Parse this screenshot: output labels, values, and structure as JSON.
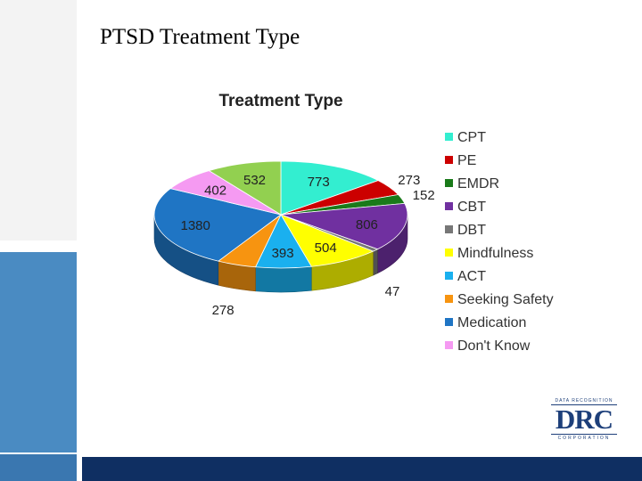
{
  "slide": {
    "title": "PTSD Treatment Type"
  },
  "logo": {
    "top_text": "DATA RECOGNITION",
    "main_text": "DRC",
    "bottom_text": "CORPORATION"
  },
  "chart_data": {
    "type": "pie",
    "title": "Treatment Type",
    "legend_position": "right",
    "categories": [
      "CPT",
      "PE",
      "EMDR",
      "CBT",
      "DBT",
      "Mindfulness",
      "ACT",
      "Seeking Safety",
      "Medication",
      "Don't Know"
    ],
    "values": [
      773,
      273,
      152,
      806,
      47,
      504,
      393,
      278,
      1380,
      402
    ],
    "data_labels": [
      "773",
      "273",
      "152",
      "806",
      "47",
      "504",
      "393",
      "278",
      "1380",
      "402"
    ],
    "colors": [
      "#33eed0",
      "#cc0000",
      "#1a7a1a",
      "#7030a0",
      "#777777",
      "#ffff00",
      "#1ab0ef",
      "#f79410",
      "#1f75c4",
      "#f59af2"
    ],
    "extra": {
      "value": 532,
      "label": "532",
      "color": "#92d050"
    }
  }
}
